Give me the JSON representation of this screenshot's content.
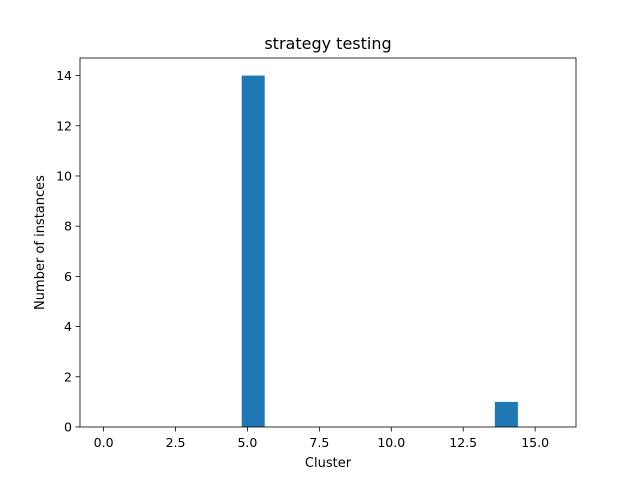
{
  "chart_data": {
    "type": "bar",
    "title": "strategy testing",
    "xlabel": "Cluster",
    "ylabel": "Number of instances",
    "bars": [
      {
        "x_start": 4.8,
        "x_end": 5.6,
        "value": 14
      },
      {
        "x_start": 13.6,
        "x_end": 14.4,
        "value": 1
      }
    ],
    "xlim": [
      -0.82,
      16.42
    ],
    "ylim": [
      0,
      14.7
    ],
    "x_ticks": [
      0.0,
      2.5,
      5.0,
      7.5,
      10.0,
      12.5,
      15.0
    ],
    "x_tick_labels": [
      "0.0",
      "2.5",
      "5.0",
      "7.5",
      "10.0",
      "12.5",
      "15.0"
    ],
    "y_ticks": [
      0,
      2,
      4,
      6,
      8,
      10,
      12,
      14
    ],
    "y_tick_labels": [
      "0",
      "2",
      "4",
      "6",
      "8",
      "10",
      "12",
      "14"
    ],
    "grid": false,
    "legend": "none",
    "colors": {
      "bar": "#1f77b4",
      "axis": "#000000",
      "background": "#ffffff"
    }
  }
}
